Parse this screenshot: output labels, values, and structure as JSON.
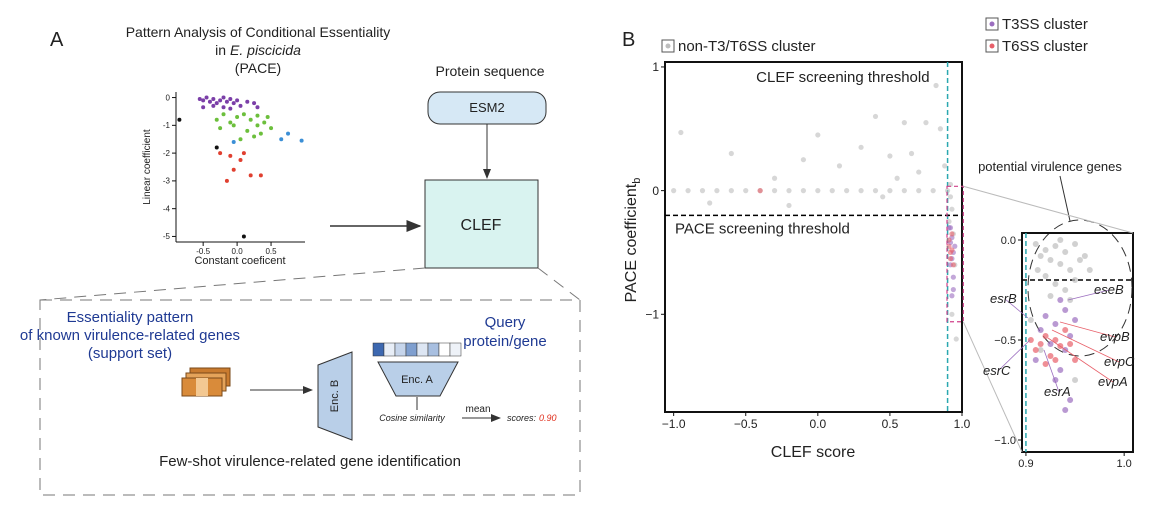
{
  "panel_a": {
    "label": "A",
    "title": {
      "line1": "Pattern Analysis of Conditional Essentiality",
      "line2_prefix": "in",
      "line2_italic": "E. piscicida",
      "line3": "(PACE)"
    },
    "protein_sequence": "Protein sequence",
    "esm2": "ESM2",
    "clef": "CLEF",
    "support": {
      "line1": "Essentiality pattern",
      "line2": "of known virulence-related genes",
      "line3": "(support set)"
    },
    "query": {
      "line1": "Query",
      "line2": "protein/gene"
    },
    "enc_a": "Enc. A",
    "enc_b": "Enc. B",
    "cosine": "Cosine similarity",
    "mean": "mean",
    "scores_label": "scores:",
    "scores_value": "0.90",
    "caption": "Few-shot virulence-related gene identification"
  },
  "panel_b": {
    "label": "B",
    "inset_title": "potential virulence genes"
  },
  "chart_data": [
    {
      "type": "scatter",
      "xlabel": "Constant coeficent",
      "ylabel": "Linear coefficient",
      "xlim": [
        -0.9,
        1.0
      ],
      "ylim": [
        -5.2,
        0.2
      ],
      "xticks": [
        -0.5,
        {
          "value": 0,
          "label": "0.0"
        },
        0.5
      ],
      "yticks": [
        0,
        -1,
        -2,
        -3,
        -4,
        -5
      ],
      "series": [
        {
          "color": "#7b3fa8",
          "x": [
            -0.55,
            -0.5,
            -0.45,
            -0.4,
            -0.35,
            -0.3,
            -0.25,
            -0.2,
            -0.15,
            -0.1,
            -0.05,
            0.0,
            -0.35,
            -0.2,
            0.05,
            -0.5,
            -0.1,
            0.15,
            0.25,
            0.3
          ],
          "values": [
            -0.05,
            -0.1,
            0.0,
            -0.15,
            -0.05,
            -0.2,
            -0.1,
            0.0,
            -0.15,
            -0.05,
            -0.2,
            -0.1,
            -0.3,
            -0.35,
            -0.3,
            -0.35,
            -0.4,
            -0.15,
            -0.2,
            -0.35
          ]
        },
        {
          "color": "#6cbf3c",
          "x": [
            -0.3,
            -0.2,
            -0.1,
            0.0,
            0.1,
            0.2,
            0.3,
            0.4,
            0.5,
            0.15,
            -0.05,
            0.25,
            0.35,
            0.45,
            -0.25,
            0.05,
            0.3
          ],
          "values": [
            -0.8,
            -0.6,
            -0.9,
            -0.7,
            -0.6,
            -0.8,
            -0.65,
            -0.9,
            -1.1,
            -1.2,
            -1.0,
            -1.4,
            -1.3,
            -0.7,
            -1.1,
            -1.5,
            -1.0
          ]
        },
        {
          "color": "#3b8fd6",
          "x": [
            -0.05,
            0.65,
            0.75,
            0.95
          ],
          "values": [
            -1.6,
            -1.5,
            -1.3,
            -1.55
          ]
        },
        {
          "color": "#e04030",
          "x": [
            -0.25,
            -0.1,
            -0.05,
            0.05,
            0.2,
            0.35,
            -0.15,
            0.1
          ],
          "values": [
            -2.0,
            -2.1,
            -2.6,
            -2.25,
            -2.8,
            -2.8,
            -3.0,
            -2.0
          ]
        },
        {
          "color": "#111111",
          "x": [
            -0.85,
            -0.3,
            0.1
          ],
          "values": [
            -0.8,
            -1.8,
            -5.0
          ]
        }
      ]
    },
    {
      "type": "scatter",
      "xlabel": "CLEF score",
      "ylabel": "PACE coefficient",
      "ylabel_sub": "b",
      "xlim": [
        -1.06,
        1.0
      ],
      "ylim": [
        -1.79,
        1.04
      ],
      "xticks": [
        {
          "value": -1,
          "label": "−1.0"
        },
        {
          "value": -0.5,
          "label": "−0.5"
        },
        {
          "value": 0,
          "label": "0.0"
        },
        0.5,
        {
          "value": 1,
          "label": "1.0"
        }
      ],
      "yticks": [
        {
          "value": -1,
          "label": "−1"
        },
        0,
        1
      ],
      "reference_lines": [
        {
          "axis": "x",
          "value": 0.9,
          "color": "#2aa8b0",
          "label": "CLEF screening threshold"
        },
        {
          "axis": "y",
          "value": -0.2,
          "color": "#000000",
          "label": "PACE screening threshold"
        }
      ],
      "series": [
        {
          "name": "non-T3/T6SS cluster",
          "color": "#bdbdbd",
          "x": [
            -1.0,
            -0.9,
            -0.8,
            -0.7,
            -0.6,
            -0.5,
            -0.4,
            -0.3,
            -0.2,
            -0.1,
            0.0,
            0.1,
            0.2,
            0.3,
            0.4,
            0.5,
            0.6,
            0.7,
            0.8,
            0.9,
            -0.95,
            -0.6,
            -0.3,
            -0.1,
            0.0,
            0.15,
            0.3,
            0.4,
            0.5,
            0.6,
            0.65,
            0.7,
            0.75,
            0.82,
            0.85,
            0.88,
            0.55,
            -0.75,
            -0.2,
            0.45,
            0.92,
            0.93,
            0.91,
            0.94,
            0.92,
            0.95,
            0.93,
            0.96
          ],
          "values": [
            0,
            0,
            0,
            0,
            0,
            0,
            0,
            0,
            0,
            0,
            0,
            0,
            0,
            0,
            0,
            0,
            0,
            0,
            0,
            0,
            0.47,
            0.3,
            0.1,
            0.25,
            0.45,
            0.2,
            0.35,
            0.6,
            0.28,
            0.55,
            0.3,
            0.15,
            0.55,
            0.85,
            0.5,
            0.2,
            0.1,
            -0.1,
            -0.12,
            -0.05,
            -0.05,
            -0.15,
            -0.25,
            -0.35,
            0.05,
            -0.6,
            -1.0,
            -1.2
          ]
        },
        {
          "name": "T3SS cluster",
          "color": "#9b6dbf",
          "x": [
            0.91,
            0.93,
            0.92,
            0.94,
            0.93,
            0.92,
            0.95,
            0.94,
            0.93,
            0.92,
            0.94
          ],
          "values": [
            -0.3,
            -0.38,
            -0.42,
            -0.5,
            -0.55,
            -0.6,
            -0.45,
            -0.7,
            -0.85,
            -0.3,
            -0.8
          ]
        },
        {
          "name": "T6SS cluster",
          "color": "#e8606a",
          "x": [
            -0.4,
            0.91,
            0.92,
            0.93,
            0.92,
            0.91,
            0.94,
            0.93
          ],
          "values": [
            0.0,
            -0.45,
            -0.5,
            -0.48,
            -0.55,
            -0.4,
            -0.6,
            -0.35
          ]
        }
      ]
    },
    {
      "type": "scatter",
      "xlim": [
        0.896,
        1.009
      ],
      "ylim": [
        -1.06,
        0.035
      ],
      "xticks": [
        0.9,
        {
          "value": 1,
          "label": "1.0"
        }
      ],
      "yticks": [
        {
          "value": 0,
          "label": "0.0"
        },
        {
          "value": -0.5,
          "label": "−0.5"
        },
        {
          "value": -1,
          "label": "−1.0"
        }
      ],
      "reference_lines": [
        {
          "axis": "x",
          "value": 0.9,
          "color": "#2aa8b0"
        },
        {
          "axis": "y",
          "value": -0.2,
          "color": "#000000"
        }
      ],
      "annotations": [
        {
          "text": "esrB",
          "color": "#9b6dbf"
        },
        {
          "text": "eseB",
          "color": "#9b6dbf"
        },
        {
          "text": "evpB",
          "color": "#e8606a"
        },
        {
          "text": "evpC",
          "color": "#e8606a"
        },
        {
          "text": "evpA",
          "color": "#e8606a"
        },
        {
          "text": "esrC",
          "color": "#9b6dbf"
        },
        {
          "text": "esrA",
          "color": "#9b6dbf"
        }
      ],
      "series": [
        {
          "color": "#bdbdbd",
          "x": [
            0.91,
            0.915,
            0.92,
            0.925,
            0.93,
            0.935,
            0.94,
            0.945,
            0.95,
            0.955,
            0.92,
            0.93,
            0.94,
            0.95,
            0.96,
            0.912,
            0.925,
            0.945,
            0.965,
            0.935,
            0.915,
            0.95,
            0.905
          ],
          "values": [
            -0.02,
            -0.08,
            -0.05,
            -0.1,
            -0.03,
            -0.12,
            -0.06,
            -0.15,
            -0.02,
            -0.1,
            -0.18,
            -0.22,
            -0.25,
            -0.2,
            -0.08,
            -0.15,
            -0.28,
            -0.3,
            -0.15,
            0.0,
            -0.55,
            -0.7,
            -0.4
          ]
        },
        {
          "color": "#9b6dbf",
          "x": [
            0.935,
            0.94,
            0.92,
            0.93,
            0.945,
            0.925,
            0.94,
            0.935,
            0.93,
            0.945,
            0.94,
            0.915,
            0.95,
            0.91
          ],
          "values": [
            -0.3,
            -0.35,
            -0.38,
            -0.42,
            -0.48,
            -0.52,
            -0.55,
            -0.65,
            -0.7,
            -0.8,
            -0.85,
            -0.45,
            -0.4,
            -0.6
          ]
        },
        {
          "color": "#e8606a",
          "x": [
            0.905,
            0.915,
            0.92,
            0.925,
            0.93,
            0.935,
            0.94,
            0.945,
            0.95,
            0.91,
            0.92,
            0.93
          ],
          "values": [
            -0.5,
            -0.52,
            -0.48,
            -0.58,
            -0.5,
            -0.53,
            -0.45,
            -0.52,
            -0.6,
            -0.55,
            -0.62,
            -0.6
          ]
        }
      ]
    }
  ]
}
